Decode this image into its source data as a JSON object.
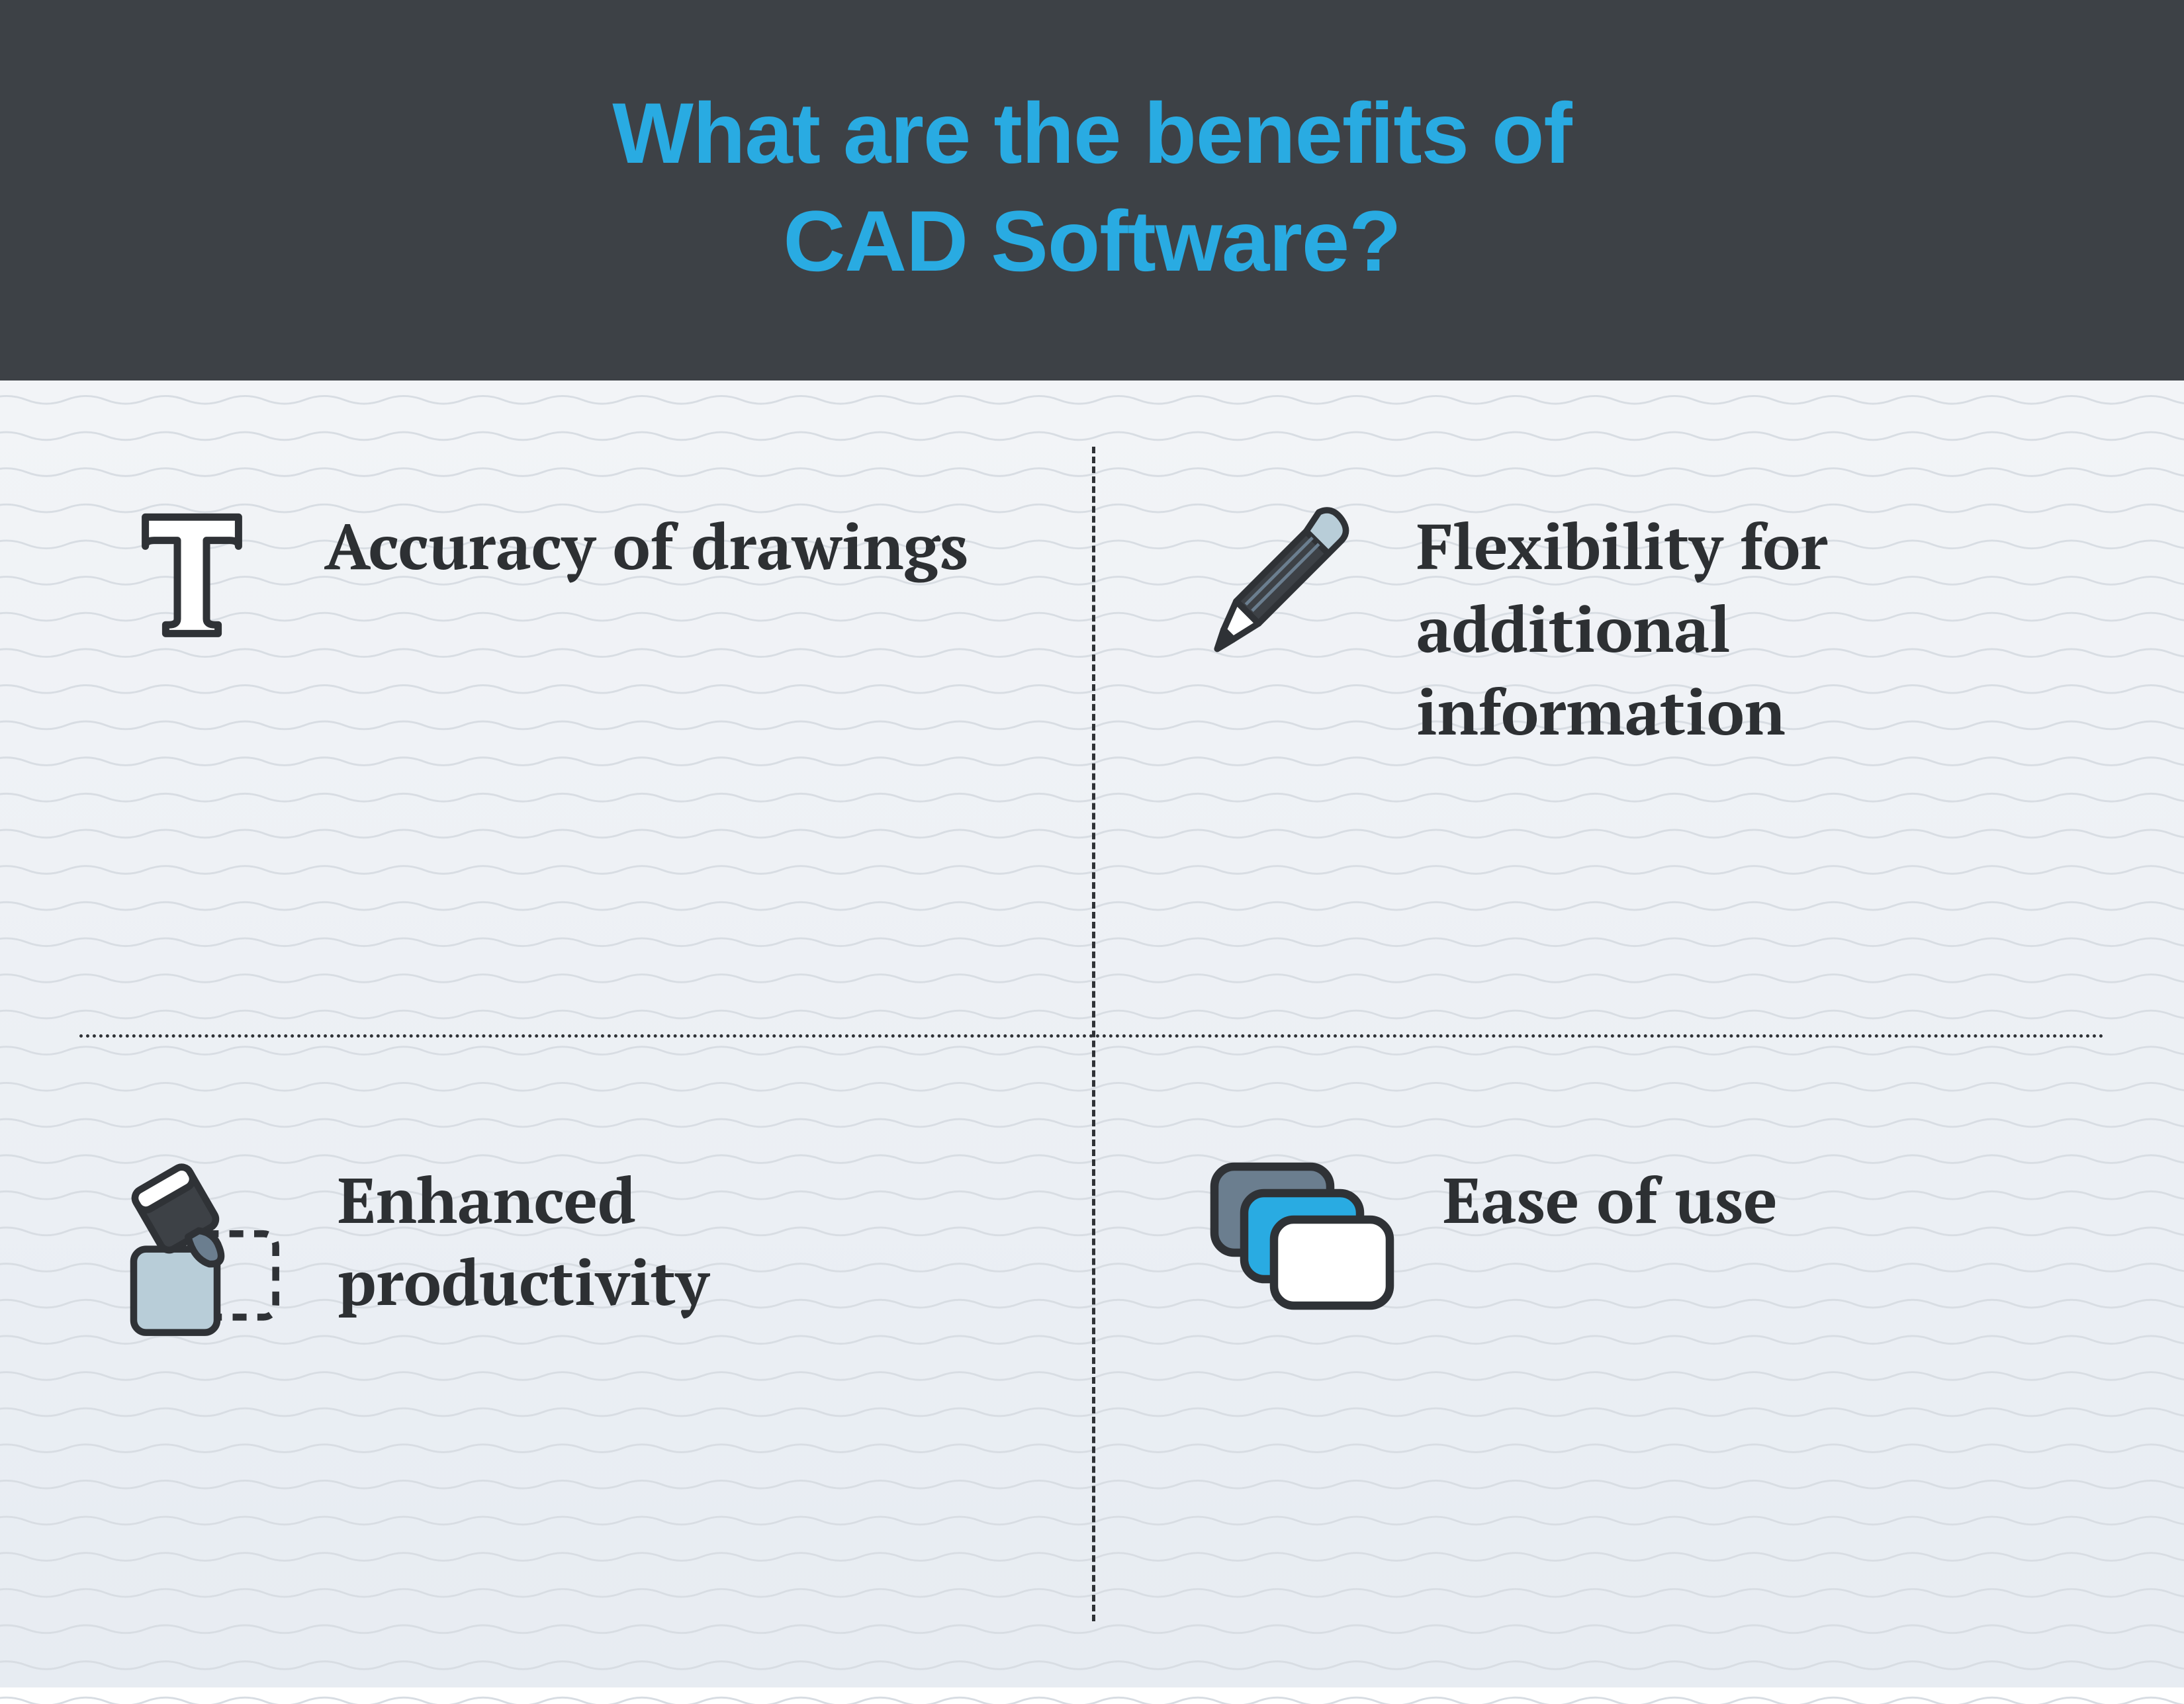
{
  "header": {
    "title_line1": "What are the benefits of",
    "title_line2": "CAD Software?",
    "title_color": "#29abe2",
    "bg_color": "#3d4146",
    "font_family": "Arial Black, sans-serif",
    "font_size_pt": 98,
    "font_weight": 900
  },
  "body": {
    "bg_gradient_top": "#f2f4f7",
    "bg_gradient_bottom": "#e7ecf2",
    "wave_stroke": "#d8dde3",
    "wave_stroke_width": 3,
    "wave_spacing": 56,
    "wave_amplitude": 12,
    "divider_color": "#2f3236",
    "divider_style_vertical": "dashed",
    "divider_style_horizontal": "dotted",
    "label_color": "#2d3033",
    "label_font_size_pt": 72,
    "icon_outline": "#2f3236",
    "icon_accent_blue": "#29abe2",
    "icon_accent_slate": "#6b7e8f",
    "icon_accent_light": "#b8cdd8",
    "icon_fill_white": "#ffffff"
  },
  "cells": [
    {
      "label": "Accuracy of drawings",
      "icon": "text-t-icon"
    },
    {
      "label": "Flexibility for additional information",
      "icon": "pencil-icon"
    },
    {
      "label": "Enhanced productivity",
      "icon": "paint-bucket-icon"
    },
    {
      "label": "Ease of use",
      "icon": "layers-icon"
    }
  ]
}
